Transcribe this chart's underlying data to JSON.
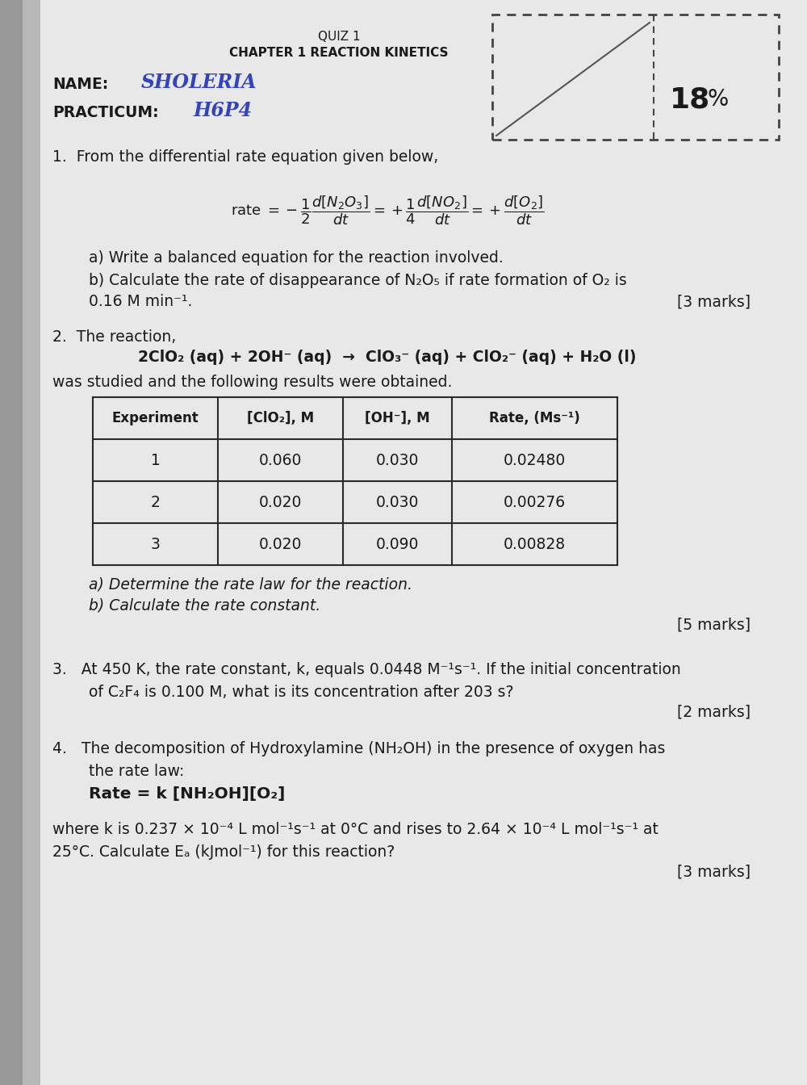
{
  "bg_color": "#c8c8c8",
  "page_color": "#e2e2e2",
  "left_shadow": "#888888",
  "title_line1": "QUIZ 1",
  "title_line2": "CHAPTER 1 REACTION KINETICS",
  "name_label": "NAME:",
  "name_value": "SHOLERIA",
  "practicum_label": "PRACTICUM:",
  "practicum_value": "H6P4",
  "score_value": "18",
  "score_unit": "%",
  "q1a": "a) Write a balanced equation for the reaction involved.",
  "q1b_line1": "b) Calculate the rate of disappearance of N₂O₅ if rate formation of O₂ is",
  "q1b_line2": "0.16 M min⁻¹.",
  "q1_marks": "[3 marks]",
  "q2_intro": "2.  The reaction,",
  "q2_eq": "2ClO₂ (aq) + 2OH⁻ (aq)  →  ClO₃⁻ (aq) + ClO₂⁻ (aq) + H₂O (l)",
  "q2_follow": "was studied and the following results were obtained.",
  "table_headers": [
    "Experiment",
    "[ClO₂], M",
    "[OH⁻], M",
    "Rate, (Ms⁻¹)"
  ],
  "table_data": [
    [
      "1",
      "0.060",
      "0.030",
      "0.02480"
    ],
    [
      "2",
      "0.020",
      "0.030",
      "0.00276"
    ],
    [
      "3",
      "0.020",
      "0.090",
      "0.00828"
    ]
  ],
  "q2a": "a) Determine the rate law for the reaction.",
  "q2b": "b) Calculate the rate constant.",
  "q2_marks": "[5 marks]",
  "q3_text_line1": "3.   At 450 K, the rate constant, k, equals 0.0448 M⁻¹s⁻¹. If the initial concentration",
  "q3_text_line2": "of C₂F₄ is 0.100 M, what is its concentration after 203 s?",
  "q3_marks": "[2 marks]",
  "q4_intro": "4.   The decomposition of Hydroxylamine (NH₂OH) in the presence of oxygen has",
  "q4_intro2": "the rate law:",
  "q4_rate": "Rate = k [NH₂OH][O₂]",
  "q4_text_line1": "where k is 0.237 × 10⁻⁴ L mol⁻¹s⁻¹ at 0°C and rises to 2.64 × 10⁻⁴ L mol⁻¹s⁻¹ at",
  "q4_text_line2": "25°C. Calculate Eₐ (kJmol⁻¹) for this reaction?",
  "q4_marks": "[3 marks]",
  "text_color": "#1a1a1a",
  "table_border_color": "#2a2a2a",
  "name_color": "#3344bb",
  "practicum_color": "#3344bb"
}
